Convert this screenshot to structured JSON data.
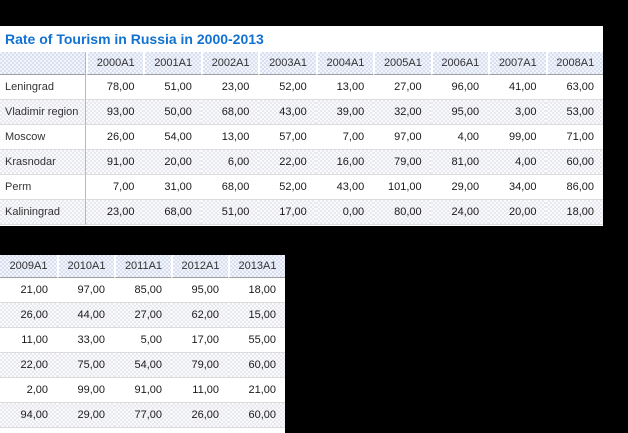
{
  "title": "Rate of Tourism in Russia in 2000-2013",
  "colors": {
    "canvas_background": "#000000",
    "panel_background": "#ffffff",
    "title_text": "#1272d2",
    "header_background": "#dee5f3",
    "zebra_row_background": "#eff0f5",
    "header_underline": "#9e9e9e",
    "row_separator": "#dcdcdc",
    "label_column_divider": "#b8b8b8",
    "data_text": "#1a1a1a"
  },
  "table1": {
    "has_label_column": true,
    "columns": [
      "2000A1",
      "2001A1",
      "2002A1",
      "2003A1",
      "2004A1",
      "2005A1",
      "2006A1",
      "2007A1",
      "2008A1"
    ],
    "rows": [
      {
        "label": "Leningrad",
        "values": [
          "78,00",
          "51,00",
          "23,00",
          "52,00",
          "13,00",
          "27,00",
          "96,00",
          "41,00",
          "63,00"
        ]
      },
      {
        "label": "Vladimir region",
        "values": [
          "93,00",
          "50,00",
          "68,00",
          "43,00",
          "39,00",
          "32,00",
          "95,00",
          "3,00",
          "53,00"
        ]
      },
      {
        "label": "Moscow",
        "values": [
          "26,00",
          "54,00",
          "13,00",
          "57,00",
          "7,00",
          "97,00",
          "4,00",
          "99,00",
          "71,00"
        ]
      },
      {
        "label": "Krasnodar",
        "values": [
          "91,00",
          "20,00",
          "6,00",
          "22,00",
          "16,00",
          "79,00",
          "81,00",
          "4,00",
          "60,00"
        ]
      },
      {
        "label": "Perm",
        "values": [
          "7,00",
          "31,00",
          "68,00",
          "52,00",
          "43,00",
          "101,00",
          "29,00",
          "34,00",
          "86,00"
        ]
      },
      {
        "label": "Kaliningrad",
        "values": [
          "23,00",
          "68,00",
          "51,00",
          "17,00",
          "0,00",
          "80,00",
          "24,00",
          "20,00",
          "18,00"
        ]
      }
    ]
  },
  "table2": {
    "has_label_column": false,
    "columns": [
      "2009A1",
      "2010A1",
      "2011A1",
      "2012A1",
      "2013A1"
    ],
    "rows": [
      {
        "values": [
          "21,00",
          "97,00",
          "85,00",
          "95,00",
          "18,00"
        ]
      },
      {
        "values": [
          "26,00",
          "44,00",
          "27,00",
          "62,00",
          "15,00"
        ]
      },
      {
        "values": [
          "11,00",
          "33,00",
          "5,00",
          "17,00",
          "55,00"
        ]
      },
      {
        "values": [
          "22,00",
          "75,00",
          "54,00",
          "79,00",
          "60,00"
        ]
      },
      {
        "values": [
          "2,00",
          "99,00",
          "91,00",
          "11,00",
          "21,00"
        ]
      },
      {
        "values": [
          "94,00",
          "29,00",
          "77,00",
          "26,00",
          "60,00"
        ]
      }
    ]
  }
}
